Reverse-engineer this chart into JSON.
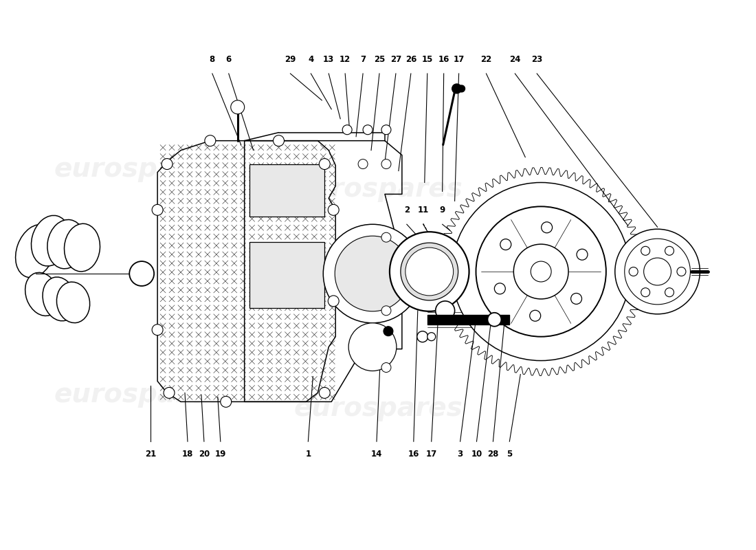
{
  "bg_color": "#ffffff",
  "line_color": "#000000",
  "watermark_color": "#d0d0d0",
  "watermark_alpha": 0.28,
  "figsize": [
    11.0,
    8.0
  ],
  "dpi": 100,
  "label_fs": 8.5,
  "top_labels": [
    [
      "8",
      3.08,
      7.08,
      3.5,
      5.9
    ],
    [
      "6",
      3.32,
      7.08,
      3.68,
      5.82
    ],
    [
      "29",
      4.22,
      7.08,
      4.68,
      6.55
    ],
    [
      "4",
      4.52,
      7.08,
      4.82,
      6.42
    ],
    [
      "13",
      4.78,
      7.08,
      4.95,
      6.28
    ],
    [
      "12",
      5.02,
      7.08,
      5.08,
      6.18
    ],
    [
      "7",
      5.28,
      7.08,
      5.18,
      6.02
    ],
    [
      "25",
      5.52,
      7.08,
      5.4,
      5.82
    ],
    [
      "27",
      5.76,
      7.08,
      5.6,
      5.65
    ],
    [
      "26",
      5.98,
      7.08,
      5.8,
      5.52
    ],
    [
      "15",
      6.22,
      7.08,
      6.18,
      5.35
    ],
    [
      "16",
      6.46,
      7.08,
      6.44,
      5.22
    ],
    [
      "17",
      6.68,
      7.08,
      6.62,
      5.08
    ],
    [
      "22",
      7.08,
      7.08,
      7.65,
      5.72
    ],
    [
      "24",
      7.5,
      7.08,
      9.15,
      4.72
    ],
    [
      "23",
      7.82,
      7.08,
      9.58,
      4.7
    ]
  ],
  "bot_labels": [
    [
      "21",
      2.18,
      1.45,
      2.18,
      2.38
    ],
    [
      "18",
      2.72,
      1.45,
      2.68,
      2.28
    ],
    [
      "20",
      2.96,
      1.45,
      2.92,
      2.25
    ],
    [
      "19",
      3.2,
      1.45,
      3.16,
      2.22
    ],
    [
      "1",
      4.48,
      1.45,
      4.55,
      2.52
    ],
    [
      "14",
      5.48,
      1.45,
      5.55,
      3.15
    ],
    [
      "16",
      6.02,
      1.45,
      6.08,
      3.48
    ],
    [
      "17",
      6.28,
      1.45,
      6.38,
      3.42
    ],
    [
      "3",
      6.7,
      1.45,
      6.92,
      3.28
    ],
    [
      "10",
      6.94,
      1.45,
      7.15,
      3.32
    ],
    [
      "28",
      7.18,
      1.45,
      7.35,
      3.36
    ],
    [
      "5",
      7.42,
      1.45,
      7.58,
      2.55
    ]
  ],
  "mid_labels": [
    [
      "2",
      5.92,
      4.88,
      6.12,
      4.52
    ],
    [
      "11",
      6.16,
      4.88,
      6.3,
      4.5
    ],
    [
      "9",
      6.44,
      4.88,
      6.55,
      4.65
    ]
  ]
}
